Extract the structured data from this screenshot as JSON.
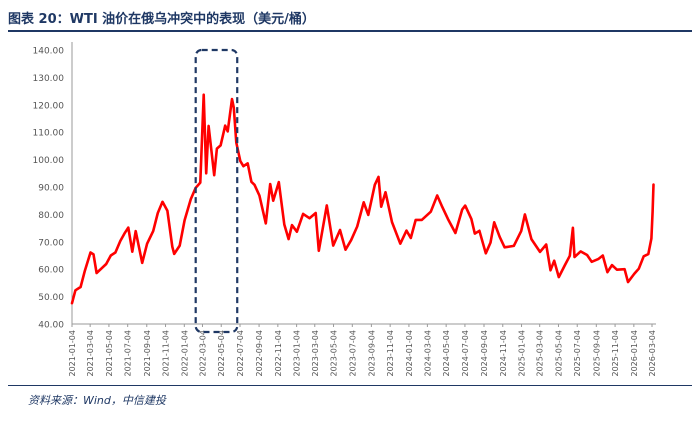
{
  "title": "图表 20：WTI 油价在俄乌冲突中的表现（美元/桶）",
  "source": "资料来源：Wind，中信建投",
  "chart_data": {
    "type": "line",
    "title": "图表 20：WTI 油价在俄乌冲突中的表现（美元/桶）",
    "ylabel": "",
    "xlabel": "",
    "ylim": [
      40,
      140
    ],
    "yticks": [
      "40.00",
      "50.00",
      "60.00",
      "70.00",
      "80.00",
      "90.00",
      "100.00",
      "110.00",
      "120.00",
      "130.00",
      "140.00"
    ],
    "xticks": [
      "2021-01-04",
      "2021-03-04",
      "2021-05-04",
      "2021-07-04",
      "2021-09-04",
      "2021-11-04",
      "2022-01-04",
      "2022-03-04",
      "2022-05-04",
      "2022-07-04",
      "2022-09-04",
      "2022-11-04",
      "2023-01-04",
      "2023-03-04",
      "2023-05-04",
      "2023-07-04",
      "2023-09-04",
      "2023-11-04",
      "2024-01-04",
      "2024-03-04",
      "2024-05-04",
      "2024-07-04",
      "2024-09-04",
      "2024-11-04",
      "2025-01-04",
      "2025-03-04",
      "2025-05-04",
      "2025-07-04",
      "2025-09-04",
      "2025-11-04",
      "2026-01-04",
      "2026-03-04"
    ],
    "grid": false,
    "legend": "none",
    "line_color": "#ff0000",
    "highlight": {
      "from": "2022-02-10",
      "to": "2022-06-25",
      "style": "dashed-box",
      "color": "#1f3864"
    },
    "series": [
      {
        "points": [
          [
            "2021-01-04",
            47.6
          ],
          [
            "2021-01-15",
            52.3
          ],
          [
            "2021-02-01",
            53.5
          ],
          [
            "2021-02-15",
            59.5
          ],
          [
            "2021-03-05",
            66.1
          ],
          [
            "2021-03-15",
            65.4
          ],
          [
            "2021-03-25",
            58.6
          ],
          [
            "2021-04-10",
            60.3
          ],
          [
            "2021-04-25",
            61.9
          ],
          [
            "2021-05-10",
            65.0
          ],
          [
            "2021-05-25",
            66.1
          ],
          [
            "2021-06-10",
            70.3
          ],
          [
            "2021-06-25",
            73.3
          ],
          [
            "2021-07-06",
            75.2
          ],
          [
            "2021-07-19",
            66.4
          ],
          [
            "2021-07-30",
            73.9
          ],
          [
            "2021-08-20",
            62.3
          ],
          [
            "2021-09-05",
            69.3
          ],
          [
            "2021-09-25",
            73.9
          ],
          [
            "2021-10-10",
            80.5
          ],
          [
            "2021-10-25",
            84.6
          ],
          [
            "2021-11-10",
            81.3
          ],
          [
            "2021-11-26",
            68.2
          ],
          [
            "2021-12-02",
            65.6
          ],
          [
            "2021-12-20",
            68.6
          ],
          [
            "2022-01-05",
            77.9
          ],
          [
            "2022-01-25",
            85.6
          ],
          [
            "2022-02-10",
            89.7
          ],
          [
            "2022-02-25",
            91.6
          ],
          [
            "2022-03-08",
            123.7
          ],
          [
            "2022-03-16",
            95.0
          ],
          [
            "2022-03-24",
            112.3
          ],
          [
            "2022-04-11",
            94.3
          ],
          [
            "2022-04-20",
            104.0
          ],
          [
            "2022-05-02",
            105.2
          ],
          [
            "2022-05-17",
            112.4
          ],
          [
            "2022-05-25",
            110.3
          ],
          [
            "2022-06-08",
            122.1
          ],
          [
            "2022-06-14",
            118.9
          ],
          [
            "2022-06-22",
            106.2
          ],
          [
            "2022-07-05",
            99.5
          ],
          [
            "2022-07-15",
            97.6
          ],
          [
            "2022-07-29",
            98.6
          ],
          [
            "2022-08-10",
            91.9
          ],
          [
            "2022-08-20",
            90.8
          ],
          [
            "2022-09-05",
            86.9
          ],
          [
            "2022-09-26",
            76.7
          ],
          [
            "2022-10-10",
            91.1
          ],
          [
            "2022-10-20",
            85.0
          ],
          [
            "2022-11-07",
            91.8
          ],
          [
            "2022-11-25",
            76.3
          ],
          [
            "2022-12-09",
            71.0
          ],
          [
            "2022-12-20",
            76.1
          ],
          [
            "2023-01-05",
            73.7
          ],
          [
            "2023-01-25",
            80.2
          ],
          [
            "2023-02-15",
            78.6
          ],
          [
            "2023-03-07",
            80.5
          ],
          [
            "2023-03-17",
            66.7
          ],
          [
            "2023-04-12",
            83.3
          ],
          [
            "2023-05-03",
            68.6
          ],
          [
            "2023-05-25",
            74.3
          ],
          [
            "2023-06-12",
            67.1
          ],
          [
            "2023-06-30",
            70.6
          ],
          [
            "2023-07-20",
            75.6
          ],
          [
            "2023-08-10",
            84.4
          ],
          [
            "2023-08-25",
            79.8
          ],
          [
            "2023-09-15",
            90.8
          ],
          [
            "2023-09-27",
            93.7
          ],
          [
            "2023-10-06",
            82.8
          ],
          [
            "2023-10-20",
            88.1
          ],
          [
            "2023-11-10",
            77.2
          ],
          [
            "2023-12-07",
            69.3
          ],
          [
            "2023-12-27",
            74.1
          ],
          [
            "2024-01-10",
            71.4
          ],
          [
            "2024-01-26",
            78.0
          ],
          [
            "2024-02-15",
            78.0
          ],
          [
            "2024-03-15",
            81.0
          ],
          [
            "2024-04-05",
            86.9
          ],
          [
            "2024-04-20",
            83.1
          ],
          [
            "2024-05-10",
            78.3
          ],
          [
            "2024-06-03",
            73.2
          ],
          [
            "2024-06-25",
            81.8
          ],
          [
            "2024-07-05",
            83.2
          ],
          [
            "2024-07-25",
            78.3
          ],
          [
            "2024-08-05",
            73.0
          ],
          [
            "2024-08-20",
            74.0
          ],
          [
            "2024-09-10",
            65.8
          ],
          [
            "2024-09-25",
            69.7
          ],
          [
            "2024-10-07",
            77.1
          ],
          [
            "2024-10-25",
            71.8
          ],
          [
            "2024-11-10",
            68.0
          ],
          [
            "2024-12-10",
            68.5
          ],
          [
            "2025-01-03",
            73.9
          ],
          [
            "2025-01-15",
            80.0
          ],
          [
            "2025-02-05",
            71.0
          ],
          [
            "2025-03-05",
            66.3
          ],
          [
            "2025-03-25",
            69.0
          ],
          [
            "2025-04-08",
            59.6
          ],
          [
            "2025-04-20",
            63.1
          ],
          [
            "2025-05-05",
            57.1
          ],
          [
            "2025-05-25",
            61.5
          ],
          [
            "2025-06-10",
            64.9
          ],
          [
            "2025-06-20",
            75.1
          ],
          [
            "2025-06-25",
            64.4
          ],
          [
            "2025-07-15",
            66.5
          ],
          [
            "2025-08-05",
            65.2
          ],
          [
            "2025-08-20",
            62.7
          ],
          [
            "2025-09-10",
            63.7
          ],
          [
            "2025-09-25",
            65.0
          ],
          [
            "2025-10-10",
            58.9
          ],
          [
            "2025-10-25",
            61.5
          ],
          [
            "2025-11-10",
            59.8
          ],
          [
            "2025-12-05",
            60.0
          ],
          [
            "2025-12-16",
            55.3
          ],
          [
            "2026-01-05",
            58.3
          ],
          [
            "2026-01-20",
            60.2
          ],
          [
            "2026-02-05",
            64.7
          ],
          [
            "2026-02-20",
            65.5
          ],
          [
            "2026-03-02",
            71.2
          ],
          [
            "2026-03-06",
            81.0
          ],
          [
            "2026-03-09",
            90.9
          ]
        ]
      }
    ]
  }
}
